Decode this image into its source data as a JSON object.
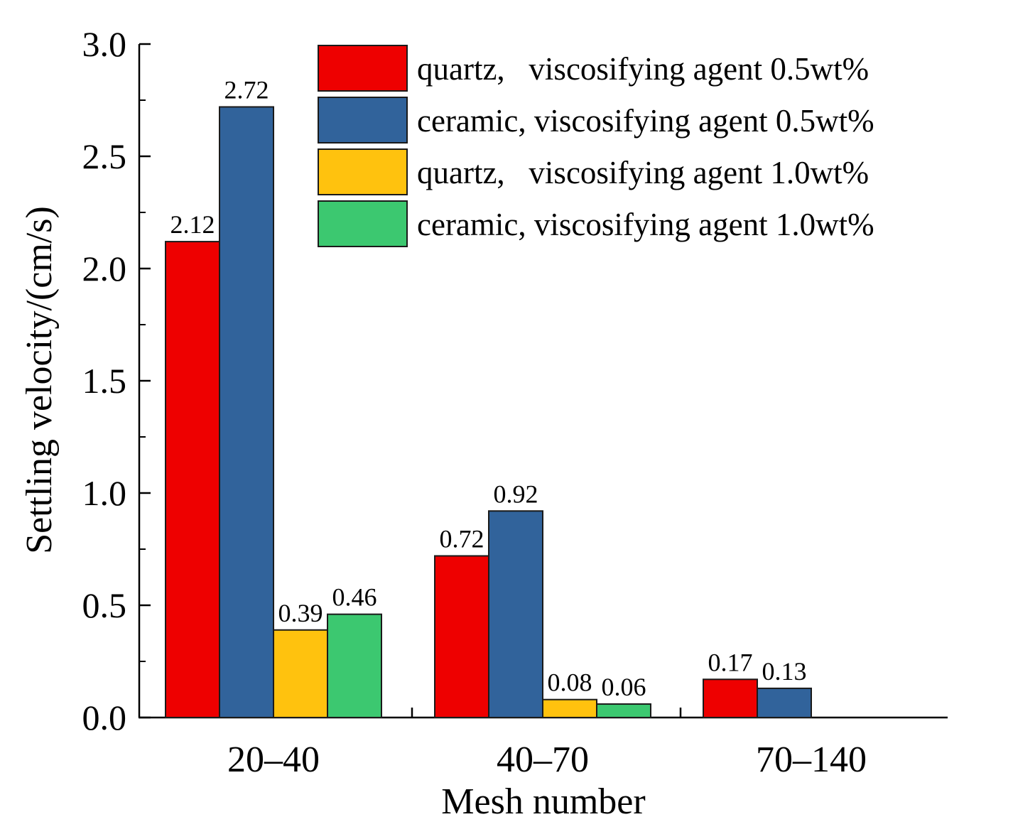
{
  "chart_data": {
    "type": "bar",
    "title": "",
    "xlabel": "Mesh number",
    "ylabel": "Settling velocity/(cm/s)",
    "ylim": [
      0,
      3.0
    ],
    "yticks": [
      "0.0",
      "0.5",
      "1.0",
      "1.5",
      "2.0",
      "2.5",
      "3.0"
    ],
    "categories": [
      "20–40",
      "40–70",
      "70–140"
    ],
    "legend_position": "top-right",
    "grid": false,
    "series": [
      {
        "name": "quartz,   viscosifying agent 0.5wt%",
        "color": "#ee0000",
        "values": [
          2.12,
          0.72,
          0.17
        ],
        "labels": [
          "2.12",
          "0.72",
          "0.17"
        ]
      },
      {
        "name": "ceramic, viscosifying agent 0.5wt%",
        "color": "#31639b",
        "values": [
          2.72,
          0.92,
          0.13
        ],
        "labels": [
          "2.72",
          "0.92",
          "0.13"
        ]
      },
      {
        "name": "quartz,   viscosifying agent 1.0wt%",
        "color": "#ffc20e",
        "values": [
          0.39,
          0.08,
          null
        ],
        "labels": [
          "0.39",
          "0.08",
          null
        ]
      },
      {
        "name": "ceramic, viscosifying agent 1.0wt%",
        "color": "#3cc870",
        "values": [
          0.46,
          0.06,
          null
        ],
        "labels": [
          "0.46",
          "0.06",
          null
        ]
      }
    ]
  }
}
